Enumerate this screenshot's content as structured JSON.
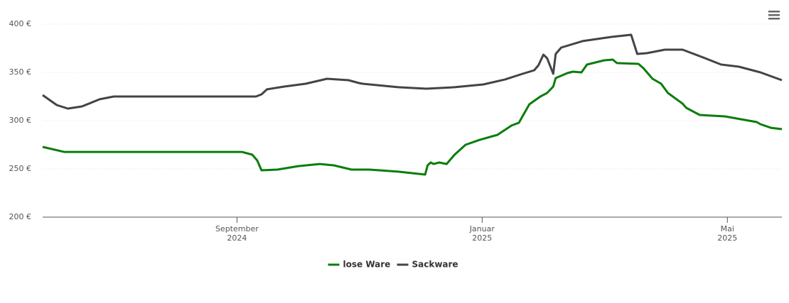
{
  "chart_data": {
    "type": "line",
    "xlim": [
      4.83,
      16.89
    ],
    "xticks": [
      {
        "value": 8,
        "label": "September\n2024"
      },
      {
        "value": 12,
        "label": "Januar\n2025"
      },
      {
        "value": 16,
        "label": "Mai\n2025"
      }
    ],
    "ylim": [
      200,
      400
    ],
    "yticks": [
      {
        "value": 200,
        "label": "200 €"
      },
      {
        "value": 250,
        "label": "250 €"
      },
      {
        "value": 300,
        "label": "300 €"
      },
      {
        "value": 350,
        "label": "350 €"
      },
      {
        "value": 400,
        "label": "400 €"
      }
    ],
    "grid": true,
    "legend": "bottom",
    "series": [
      {
        "name": "lose Ware",
        "color": "#0a7d0a",
        "x": [
          4.83,
          5.18,
          6.45,
          8.08,
          8.25,
          8.33,
          8.4,
          8.66,
          9.0,
          9.35,
          9.58,
          9.87,
          10.16,
          10.63,
          11.07,
          11.11,
          11.16,
          11.21,
          11.3,
          11.42,
          11.55,
          11.73,
          11.96,
          12.25,
          12.48,
          12.6,
          12.77,
          12.95,
          13.06,
          13.16,
          13.2,
          13.39,
          13.48,
          13.62,
          13.71,
          13.99,
          14.13,
          14.2,
          14.55,
          14.63,
          14.78,
          14.92,
          15.03,
          15.27,
          15.33,
          15.55,
          15.96,
          16.48,
          16.54,
          16.71,
          16.89
        ],
        "values": [
          272.8,
          267.6,
          267.6,
          267.6,
          264.7,
          258.8,
          248.5,
          249.3,
          252.9,
          255.1,
          253.7,
          249.3,
          249.3,
          247.1,
          244.1,
          253.7,
          256.6,
          255.1,
          256.6,
          255.1,
          264.7,
          275,
          280.1,
          285.3,
          294.9,
          297.8,
          316.9,
          325,
          328.7,
          335.3,
          344.1,
          349.3,
          350.7,
          350,
          358.1,
          362.5,
          363.2,
          359.6,
          358.8,
          354.4,
          343.4,
          338.2,
          328.7,
          317.6,
          313.2,
          305.9,
          304.4,
          298.5,
          296.3,
          292.6,
          291.2
        ]
      },
      {
        "name": "Sackware",
        "color": "#434348",
        "x": [
          4.83,
          5.06,
          5.24,
          5.47,
          5.76,
          5.99,
          6.45,
          8.31,
          8.4,
          8.49,
          8.77,
          9.12,
          9.47,
          9.82,
          9.99,
          10.05,
          10.63,
          11.09,
          11.55,
          12.02,
          12.37,
          12.66,
          12.85,
          12.92,
          13.0,
          13.06,
          13.16,
          13.2,
          13.29,
          13.64,
          14.11,
          14.43,
          14.53,
          14.69,
          14.98,
          15.27,
          15.61,
          15.9,
          16.19,
          16.54,
          16.89
        ],
        "values": [
          326.5,
          316.2,
          312.5,
          314.7,
          322.1,
          325,
          325,
          325,
          327.2,
          332.4,
          335.3,
          338.2,
          343.4,
          341.9,
          339,
          338.2,
          334.6,
          333.1,
          334.6,
          337.5,
          342.6,
          348.5,
          352.2,
          357.4,
          368.4,
          364.7,
          348.5,
          369.1,
          375.7,
          382.4,
          386.8,
          389,
          369.1,
          369.9,
          373.5,
          373.5,
          365.4,
          358.1,
          355.9,
          350,
          341.9
        ]
      }
    ]
  }
}
